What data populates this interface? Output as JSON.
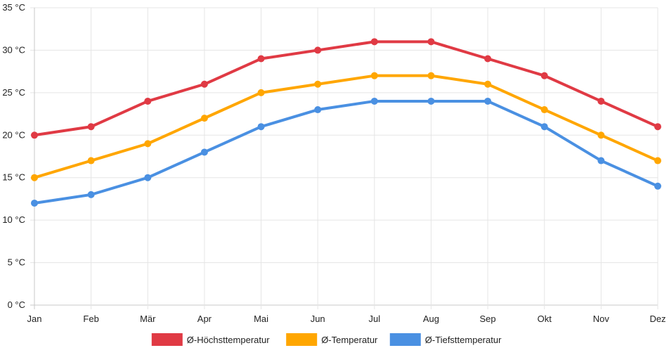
{
  "chart_data": {
    "type": "line",
    "title": "",
    "xlabel": "",
    "ylabel": "",
    "categories": [
      "Jan",
      "Feb",
      "Mär",
      "Apr",
      "Mai",
      "Jun",
      "Jul",
      "Aug",
      "Sep",
      "Okt",
      "Nov",
      "Dez"
    ],
    "ylim": [
      0,
      35
    ],
    "yticks": [
      0,
      5,
      10,
      15,
      20,
      25,
      30,
      35
    ],
    "yunit": " °C",
    "grid": true,
    "legend_position": "bottom-center",
    "series": [
      {
        "name": "Ø-Höchsttemperatur",
        "color": "#e03a44",
        "values": [
          20,
          21,
          24,
          26,
          29,
          30,
          31,
          31,
          29,
          27,
          24,
          21
        ]
      },
      {
        "name": "Ø-Temperatur",
        "color": "#ffa600",
        "values": [
          15,
          17,
          19,
          22,
          25,
          26,
          27,
          27,
          26,
          23,
          20,
          17
        ]
      },
      {
        "name": "Ø-Tiefsttemperatur",
        "color": "#4a90e2",
        "values": [
          12,
          13,
          15,
          18,
          21,
          23,
          24,
          24,
          24,
          21,
          17,
          14
        ]
      }
    ]
  }
}
